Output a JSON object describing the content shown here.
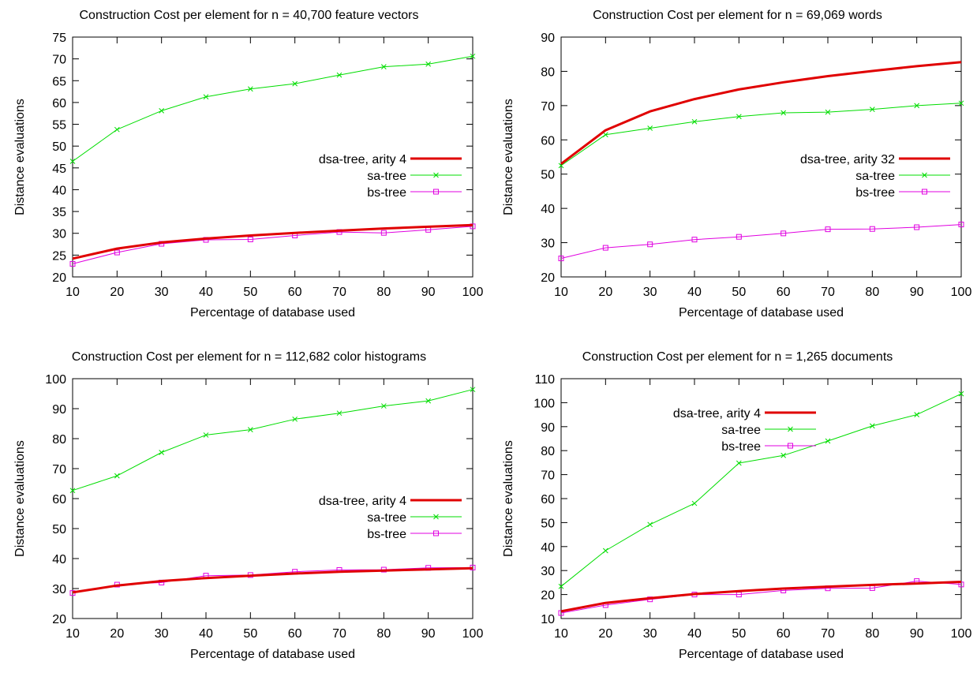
{
  "style": {
    "colors": {
      "dsa-tree": "#e00000",
      "sa-tree": "#00dd00",
      "bs-tree": "#e000e0"
    },
    "markers": {
      "dsa-tree": "none",
      "sa-tree": "x",
      "bs-tree": "square"
    }
  },
  "chart_data": [
    {
      "type": "line",
      "title": "Construction Cost per element for n = 40,700 feature vectors",
      "xlabel": "Percentage of database used",
      "ylabel": "Distance evaluations",
      "x": [
        10,
        20,
        30,
        40,
        50,
        60,
        70,
        80,
        90,
        100
      ],
      "xlim": [
        10,
        100
      ],
      "ylim": [
        20,
        75
      ],
      "yticks": [
        20,
        25,
        30,
        35,
        40,
        45,
        50,
        55,
        60,
        65,
        70,
        75
      ],
      "xticks": [
        10,
        20,
        30,
        40,
        50,
        60,
        70,
        80,
        90,
        100
      ],
      "legend_position": "right",
      "series": [
        {
          "name": "dsa-tree, arity 4",
          "values": [
            24.2,
            26.5,
            27.9,
            28.8,
            29.5,
            30.1,
            30.6,
            31.1,
            31.5,
            31.9
          ]
        },
        {
          "name": "sa-tree",
          "values": [
            46.5,
            53.8,
            58.1,
            61.3,
            63.1,
            64.3,
            66.3,
            68.2,
            68.8,
            70.6
          ]
        },
        {
          "name": "bs-tree",
          "values": [
            23.0,
            25.6,
            27.6,
            28.5,
            28.6,
            29.5,
            30.3,
            30.1,
            30.8,
            31.6
          ]
        }
      ]
    },
    {
      "type": "line",
      "title": "Construction Cost per element for n = 69,069 words",
      "xlabel": "Percentage of database used",
      "ylabel": "Distance evaluations",
      "x": [
        10,
        20,
        30,
        40,
        50,
        60,
        70,
        80,
        90,
        100
      ],
      "xlim": [
        10,
        100
      ],
      "ylim": [
        20,
        90
      ],
      "yticks": [
        20,
        30,
        40,
        50,
        60,
        70,
        80,
        90
      ],
      "xticks": [
        10,
        20,
        30,
        40,
        50,
        60,
        70,
        80,
        90,
        100
      ],
      "legend_position": "right",
      "series": [
        {
          "name": "dsa-tree, arity 32",
          "values": [
            53.0,
            62.8,
            68.3,
            71.9,
            74.7,
            76.8,
            78.6,
            80.1,
            81.5,
            82.7
          ]
        },
        {
          "name": "sa-tree",
          "values": [
            52.5,
            61.5,
            63.4,
            65.3,
            66.8,
            67.9,
            68.1,
            68.9,
            70.0,
            70.7
          ]
        },
        {
          "name": "bs-tree",
          "values": [
            25.4,
            28.5,
            29.5,
            30.9,
            31.7,
            32.7,
            33.9,
            34.0,
            34.5,
            35.3
          ]
        }
      ]
    },
    {
      "type": "line",
      "title": "Construction Cost per element for n = 112,682 color histograms",
      "xlabel": "Percentage of database used",
      "ylabel": "Distance evaluations",
      "x": [
        10,
        20,
        30,
        40,
        50,
        60,
        70,
        80,
        90,
        100
      ],
      "xlim": [
        10,
        100
      ],
      "ylim": [
        20,
        100
      ],
      "yticks": [
        20,
        30,
        40,
        50,
        60,
        70,
        80,
        90,
        100
      ],
      "xticks": [
        10,
        20,
        30,
        40,
        50,
        60,
        70,
        80,
        90,
        100
      ],
      "legend_position": "right",
      "series": [
        {
          "name": "dsa-tree, arity 4",
          "values": [
            28.7,
            31.0,
            32.5,
            33.5,
            34.3,
            35.0,
            35.6,
            36.0,
            36.4,
            36.8
          ]
        },
        {
          "name": "sa-tree",
          "values": [
            62.7,
            67.6,
            75.4,
            81.2,
            83.0,
            86.5,
            88.5,
            90.9,
            92.6,
            96.4
          ]
        },
        {
          "name": "bs-tree",
          "values": [
            28.5,
            31.3,
            32.0,
            34.3,
            34.5,
            35.6,
            36.2,
            36.3,
            36.9,
            37.0
          ]
        }
      ]
    },
    {
      "type": "line",
      "title": "Construction Cost per element for n = 1,265 documents",
      "xlabel": "Percentage of database used",
      "ylabel": "Distance evaluations",
      "x": [
        10,
        20,
        30,
        40,
        50,
        60,
        70,
        80,
        90,
        100
      ],
      "xlim": [
        10,
        100
      ],
      "ylim": [
        10,
        110
      ],
      "yticks": [
        10,
        20,
        30,
        40,
        50,
        60,
        70,
        80,
        90,
        100,
        110
      ],
      "xticks": [
        10,
        20,
        30,
        40,
        50,
        60,
        70,
        80,
        90,
        100
      ],
      "legend_position": "top-left",
      "series": [
        {
          "name": "dsa-tree, arity 4",
          "values": [
            13.0,
            16.5,
            18.5,
            20.2,
            21.4,
            22.5,
            23.3,
            24.0,
            24.6,
            25.3
          ]
        },
        {
          "name": "sa-tree",
          "values": [
            23.4,
            38.3,
            49.2,
            58.0,
            74.8,
            78.0,
            84.0,
            90.3,
            95.0,
            103.7
          ]
        },
        {
          "name": "bs-tree",
          "values": [
            12.3,
            15.6,
            18.0,
            20.0,
            20.0,
            21.7,
            22.6,
            22.7,
            25.6,
            24.2
          ]
        }
      ]
    }
  ]
}
